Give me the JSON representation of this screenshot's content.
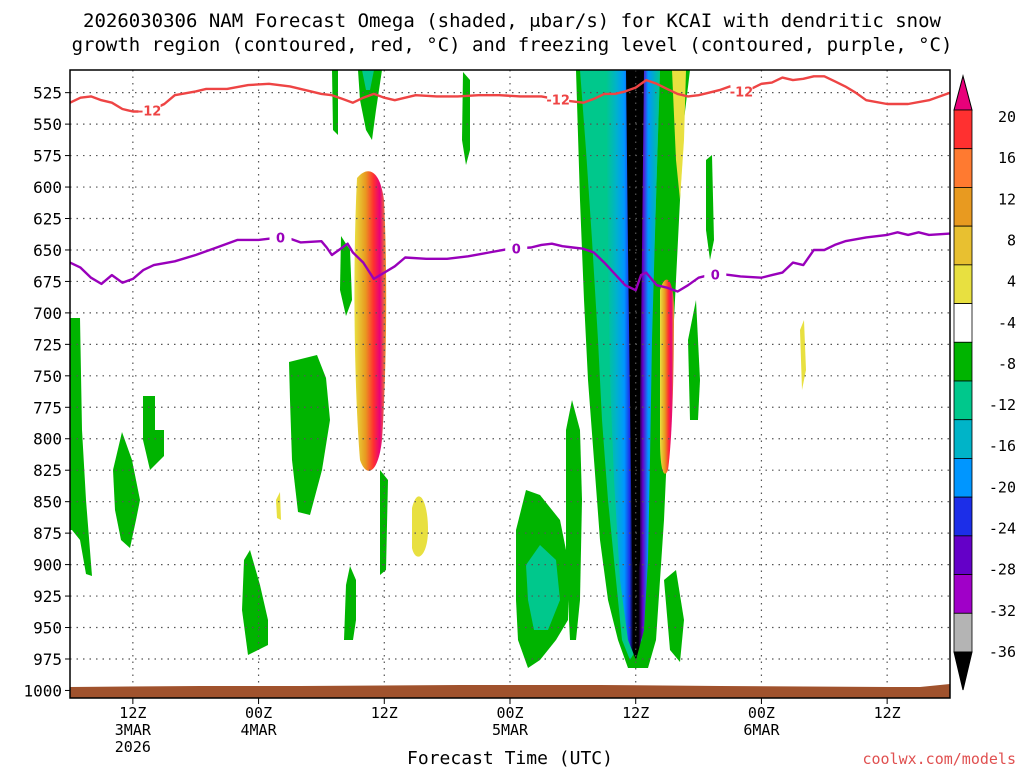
{
  "chart_data": {
    "type": "time-height cross-section",
    "title_line1": "2026030306 NAM Forecast Omega (shaded, μbar/s) for KCAI with dendritic snow",
    "title_line2": "growth region (contoured, red, °C) and freezing level (contoured, purple, °C)",
    "xlabel": "Forecast Time (UTC)",
    "credit": "coolwx.com/models",
    "credit_color": "#e05050",
    "time_range_hours": [
      0,
      84
    ],
    "pressure_range_hpa": [
      1006,
      507
    ],
    "pressure_levels": [
      "525",
      "550",
      "575",
      "600",
      "625",
      "650",
      "675",
      "700",
      "725",
      "750",
      "775",
      "800",
      "825",
      "850",
      "875",
      "900",
      "925",
      "950",
      "975",
      "1000"
    ],
    "x_ticks": [
      {
        "hour": 6,
        "line1": "12Z",
        "line2": "3MAR",
        "line3": "2026"
      },
      {
        "hour": 18,
        "line1": "00Z",
        "line2": "4MAR",
        "line3": ""
      },
      {
        "hour": 30,
        "line1": "12Z",
        "line2": "",
        "line3": ""
      },
      {
        "hour": 42,
        "line1": "00Z",
        "line2": "5MAR",
        "line3": ""
      },
      {
        "hour": 54,
        "line1": "12Z",
        "line2": "",
        "line3": ""
      },
      {
        "hour": 66,
        "line1": "00Z",
        "line2": "6MAR",
        "line3": ""
      },
      {
        "hour": 78,
        "line1": "12Z",
        "line2": "",
        "line3": ""
      }
    ],
    "colorbar": {
      "labels": [
        "20",
        "16",
        "12",
        "8",
        "4",
        "-4",
        "-8",
        "-12",
        "-16",
        "-20",
        "-24",
        "-28",
        "-32",
        "-36"
      ],
      "colors": [
        "#e8007a",
        "#ff3030",
        "#ff7a30",
        "#e89a20",
        "#e8c030",
        "#e8e040",
        "#ffffff",
        "#00b400",
        "#00c88c",
        "#00b4c8",
        "#0096ff",
        "#1c2ee8",
        "#6400c8",
        "#a000c8",
        "#b4b4b4",
        "#000000"
      ]
    },
    "series": [
      {
        "name": "dendritic snow growth region (-12 °C)",
        "color": "#ee4444",
        "label": "-12",
        "points": [
          [
            0,
            533
          ],
          [
            1,
            529
          ],
          [
            2,
            528
          ],
          [
            3,
            531
          ],
          [
            4,
            533
          ],
          [
            5,
            538
          ],
          [
            6,
            540
          ],
          [
            7,
            540
          ],
          [
            8,
            538
          ],
          [
            9,
            534
          ],
          [
            10,
            527
          ],
          [
            12,
            524
          ],
          [
            13,
            522
          ],
          [
            15,
            522
          ],
          [
            17,
            519
          ],
          [
            19,
            518
          ],
          [
            21,
            520
          ],
          [
            23,
            524
          ],
          [
            24,
            526
          ],
          [
            25,
            527
          ],
          [
            26,
            530
          ],
          [
            27,
            533
          ],
          [
            28,
            529
          ],
          [
            29,
            526
          ],
          [
            30,
            529
          ],
          [
            31,
            531
          ],
          [
            32,
            529
          ],
          [
            33,
            527
          ],
          [
            35,
            528
          ],
          [
            37,
            528
          ],
          [
            39,
            527
          ],
          [
            41,
            527
          ],
          [
            43,
            528
          ],
          [
            45,
            528
          ],
          [
            47,
            531
          ],
          [
            49,
            533
          ],
          [
            50,
            530
          ],
          [
            51,
            526
          ],
          [
            52,
            526
          ],
          [
            53,
            524
          ],
          [
            54,
            521
          ],
          [
            55,
            515
          ],
          [
            56,
            518
          ],
          [
            57,
            522
          ],
          [
            58,
            526
          ],
          [
            59,
            528
          ],
          [
            60,
            527
          ],
          [
            61,
            525
          ],
          [
            62,
            523
          ],
          [
            63,
            520
          ],
          [
            64,
            524
          ],
          [
            65,
            522
          ],
          [
            66,
            518
          ],
          [
            67,
            517
          ],
          [
            68,
            513
          ],
          [
            69,
            515
          ],
          [
            70,
            514
          ],
          [
            71,
            512
          ],
          [
            72,
            512
          ],
          [
            73,
            516
          ],
          [
            74,
            520
          ],
          [
            75,
            525
          ],
          [
            76,
            531
          ],
          [
            78,
            534
          ],
          [
            80,
            534
          ],
          [
            82,
            531
          ],
          [
            84,
            525
          ]
        ]
      },
      {
        "name": "freezing level (0 °C)",
        "color": "#9900bb",
        "label": "0",
        "points": [
          [
            0,
            660
          ],
          [
            1,
            664
          ],
          [
            2,
            672
          ],
          [
            3,
            677
          ],
          [
            4,
            670
          ],
          [
            5,
            676
          ],
          [
            6,
            673
          ],
          [
            7,
            666
          ],
          [
            8,
            662
          ],
          [
            10,
            659
          ],
          [
            12,
            654
          ],
          [
            14,
            648
          ],
          [
            16,
            642
          ],
          [
            18,
            642
          ],
          [
            20,
            640
          ],
          [
            21,
            641
          ],
          [
            22,
            644
          ],
          [
            24,
            643
          ],
          [
            24.5,
            648
          ],
          [
            25,
            654
          ],
          [
            26,
            648
          ],
          [
            26.5,
            645
          ],
          [
            27,
            652
          ],
          [
            28,
            660
          ],
          [
            29,
            673
          ],
          [
            30,
            668
          ],
          [
            31,
            663
          ],
          [
            32,
            656
          ],
          [
            34,
            657
          ],
          [
            36,
            657
          ],
          [
            38,
            655
          ],
          [
            40,
            652
          ],
          [
            42,
            649
          ],
          [
            44,
            648
          ],
          [
            45,
            646
          ],
          [
            46,
            645
          ],
          [
            47,
            647
          ],
          [
            48,
            648
          ],
          [
            49,
            649
          ],
          [
            50,
            652
          ],
          [
            51,
            660
          ],
          [
            52,
            669
          ],
          [
            53,
            678
          ],
          [
            54,
            682
          ],
          [
            54.5,
            670
          ],
          [
            55,
            668
          ],
          [
            56,
            678
          ],
          [
            57,
            680
          ],
          [
            58,
            683
          ],
          [
            59,
            678
          ],
          [
            60,
            672
          ],
          [
            61,
            670
          ],
          [
            62,
            669
          ],
          [
            63,
            670
          ],
          [
            64,
            671
          ],
          [
            66,
            672
          ],
          [
            67,
            670
          ],
          [
            68,
            668
          ],
          [
            69,
            660
          ],
          [
            70,
            662
          ],
          [
            71,
            650
          ],
          [
            72,
            650
          ],
          [
            73,
            646
          ],
          [
            74,
            643
          ],
          [
            76,
            640
          ],
          [
            78,
            638
          ],
          [
            79,
            636
          ],
          [
            80,
            638
          ],
          [
            81,
            636
          ],
          [
            82,
            638
          ],
          [
            84,
            637
          ]
        ]
      }
    ]
  }
}
